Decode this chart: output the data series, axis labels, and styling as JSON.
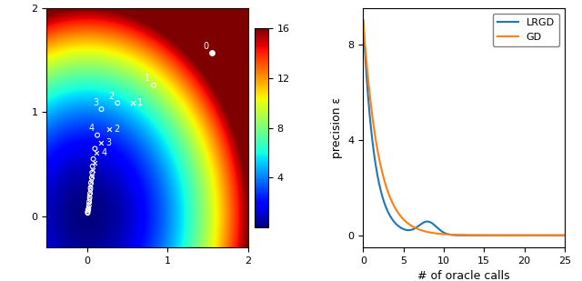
{
  "xlim_left": [
    -0.5,
    2.0
  ],
  "ylim_left": [
    -0.3,
    2.0
  ],
  "colorbar_ticks": [
    4,
    8,
    12,
    16
  ],
  "colorbar_range": [
    0,
    16
  ],
  "points_circle": [
    [
      1.55,
      1.57
    ],
    [
      0.83,
      1.26
    ],
    [
      0.38,
      1.09
    ],
    [
      0.18,
      1.03
    ],
    [
      0.13,
      0.78
    ],
    [
      0.1,
      0.65
    ],
    [
      0.08,
      0.55
    ],
    [
      0.07,
      0.48
    ],
    [
      0.065,
      0.42
    ],
    [
      0.06,
      0.37
    ],
    [
      0.05,
      0.32
    ],
    [
      0.045,
      0.27
    ],
    [
      0.04,
      0.22
    ],
    [
      0.035,
      0.18
    ],
    [
      0.03,
      0.14
    ],
    [
      0.025,
      0.1
    ],
    [
      0.02,
      0.07
    ],
    [
      0.015,
      0.055
    ],
    [
      0.01,
      0.04
    ],
    [
      0.01,
      0.03
    ]
  ],
  "points_cross": [
    [
      0.57,
      1.09
    ],
    [
      0.28,
      0.84
    ],
    [
      0.17,
      0.71
    ],
    [
      0.12,
      0.61
    ],
    [
      0.09,
      0.51
    ],
    [
      0.075,
      0.44
    ],
    [
      0.06,
      0.38
    ],
    [
      0.05,
      0.33
    ],
    [
      0.04,
      0.28
    ],
    [
      0.035,
      0.23
    ],
    [
      0.03,
      0.19
    ],
    [
      0.025,
      0.15
    ],
    [
      0.02,
      0.11
    ],
    [
      0.015,
      0.08
    ],
    [
      0.01,
      0.055
    ]
  ],
  "right_xlim": [
    0,
    25
  ],
  "right_ylim": [
    -0.5,
    9.5
  ],
  "right_yticks": [
    0,
    4,
    8
  ],
  "lrgd_color": "#1f77b4",
  "gd_color": "#ff7f0e",
  "xlabel_right": "# of oracle calls",
  "ylabel_right": "precision ε",
  "figsize": [
    6.4,
    3.09
  ],
  "dpi": 100
}
